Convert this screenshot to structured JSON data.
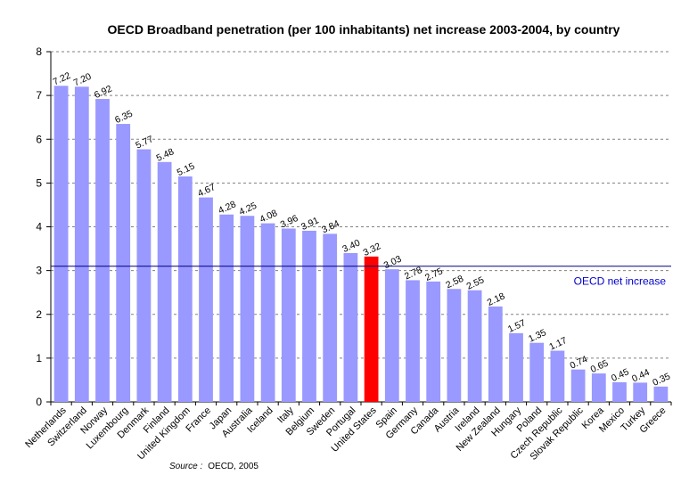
{
  "chart_data": {
    "type": "bar",
    "title": "OECD Broadband penetration (per 100 inhabitants) net increase 2003-2004, by country",
    "xlabel": "",
    "ylabel": "",
    "ylim": [
      0,
      8
    ],
    "yticks": [
      0,
      1,
      2,
      3,
      4,
      5,
      6,
      7,
      8
    ],
    "grid": true,
    "categories": [
      "Netherlands",
      "Switzerland",
      "Norway",
      "Luxembourg",
      "Denmark",
      "Finland",
      "United Kingdom",
      "France",
      "Japan",
      "Australia",
      "Iceland",
      "Italy",
      "Belgium",
      "Sweden",
      "Portugal",
      "United States",
      "Spain",
      "Germany",
      "Canada",
      "Austria",
      "Ireland",
      "New Zealand",
      "Hungary",
      "Poland",
      "Czech Republic",
      "Slovak Republic",
      "Korea",
      "Mexico",
      "Turkey",
      "Greece"
    ],
    "values": [
      7.22,
      7.2,
      6.92,
      6.35,
      5.77,
      5.48,
      5.15,
      4.67,
      4.28,
      4.25,
      4.08,
      3.96,
      3.91,
      3.84,
      3.4,
      3.32,
      3.03,
      2.78,
      2.75,
      2.58,
      2.55,
      2.18,
      1.57,
      1.35,
      1.17,
      0.74,
      0.65,
      0.45,
      0.44,
      0.35
    ],
    "data_labels": [
      "7.22",
      "7.20",
      "6.92",
      "6.35",
      "5.77",
      "5.48",
      "5.15",
      "4.67",
      "4.28",
      "4.25",
      "4.08",
      "3.96",
      "3.91",
      "3.84",
      "3.40",
      "3.32",
      "3.03",
      "2.78",
      "2.75",
      "2.58",
      "2.55",
      "2.18",
      "1.57",
      "1.35",
      "1.17",
      "0.74",
      "0.65",
      "0.45",
      "0.44",
      "0.35"
    ],
    "highlight_category": "United States",
    "reference_line": {
      "label": "OECD net increase",
      "value": 3.1
    },
    "colors": {
      "bar": "#9999ff",
      "highlight": "#ff0000",
      "reference_line": "#000080",
      "reference_label": "#0000cc",
      "grid": "#808080"
    }
  },
  "source": {
    "label": "Source :",
    "text": "OECD, 2005"
  }
}
